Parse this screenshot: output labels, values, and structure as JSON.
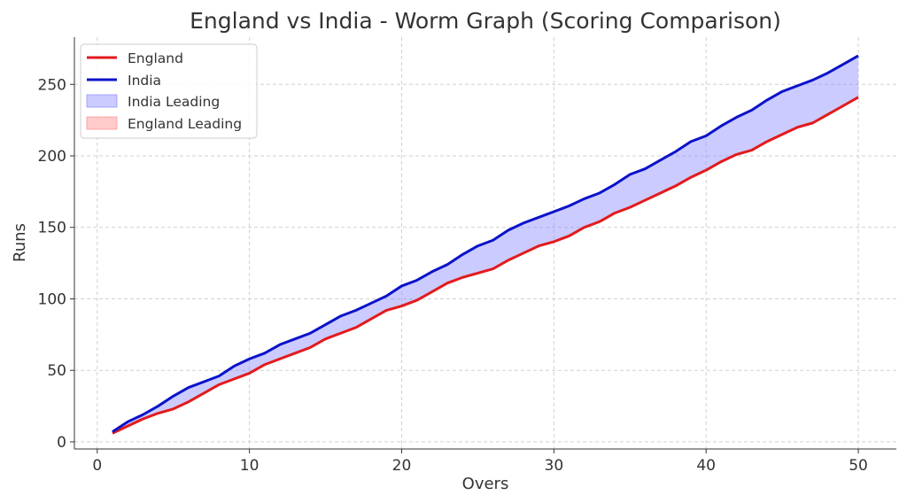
{
  "chart_data": {
    "type": "line",
    "title": "England vs India - Worm Graph (Scoring Comparison)",
    "xlabel": "Overs",
    "ylabel": "Runs",
    "xlim": [
      -1.5,
      52.5
    ],
    "ylim": [
      -5,
      283
    ],
    "xticks": [
      "0",
      "10",
      "20",
      "30",
      "40",
      "50"
    ],
    "yticks": [
      "0",
      "50",
      "100",
      "150",
      "200",
      "250"
    ],
    "grid": true,
    "legend_position": "top-left",
    "x": [
      1,
      2,
      3,
      4,
      5,
      6,
      7,
      8,
      9,
      10,
      11,
      12,
      13,
      14,
      15,
      16,
      17,
      18,
      19,
      20,
      21,
      22,
      23,
      24,
      25,
      26,
      27,
      28,
      29,
      30,
      31,
      32,
      33,
      34,
      35,
      36,
      37,
      38,
      39,
      40,
      41,
      42,
      43,
      44,
      45,
      46,
      47,
      48,
      49,
      50
    ],
    "series": [
      {
        "name": "England",
        "color": "#e31a1c",
        "values": [
          6,
          11,
          16,
          20,
          23,
          28,
          34,
          40,
          44,
          48,
          54,
          58,
          62,
          66,
          72,
          76,
          80,
          86,
          92,
          95,
          99,
          105,
          111,
          115,
          118,
          121,
          127,
          132,
          137,
          140,
          144,
          150,
          154,
          160,
          164,
          169,
          174,
          179,
          185,
          190,
          196,
          201,
          204,
          210,
          215,
          220,
          223,
          229,
          235,
          241
        ]
      },
      {
        "name": "India",
        "color": "#0b12c9",
        "values": [
          7,
          14,
          19,
          25,
          32,
          38,
          42,
          46,
          53,
          58,
          62,
          68,
          72,
          76,
          82,
          88,
          92,
          97,
          102,
          109,
          113,
          119,
          124,
          131,
          137,
          141,
          148,
          153,
          157,
          161,
          165,
          170,
          174,
          180,
          187,
          191,
          197,
          203,
          210,
          214,
          221,
          227,
          232,
          239,
          245,
          249,
          253,
          258,
          264,
          270
        ]
      }
    ],
    "fills": [
      {
        "name": "India Leading",
        "color": "#8c8cff",
        "opacity": 0.45
      },
      {
        "name": "England Leading",
        "color": "#ff8c8c",
        "opacity": 0.45
      }
    ]
  }
}
